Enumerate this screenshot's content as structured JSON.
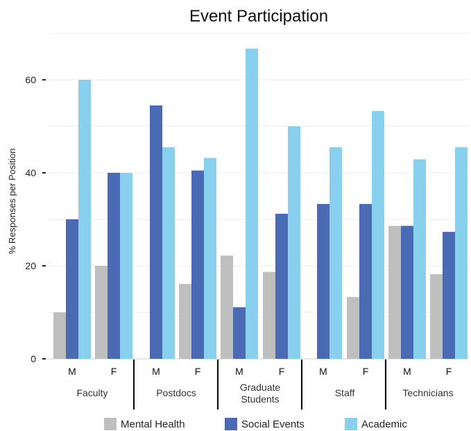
{
  "chart_data": {
    "type": "bar",
    "title": "Event Participation",
    "ylabel": "% Responses per Position",
    "xlabel": "",
    "ylim": [
      0,
      70
    ],
    "yticks": [
      0,
      20,
      40,
      60
    ],
    "grid": true,
    "legend_position": "bottom",
    "groups": [
      "Faculty",
      "Postdocs",
      "Graduate Students",
      "Staff",
      "Technicians"
    ],
    "subgroups": [
      "M",
      "F"
    ],
    "series": [
      {
        "name": "Mental Health",
        "color": "#bfbfbf",
        "values": [
          10,
          20,
          0,
          16.1,
          22.2,
          18.7,
          0,
          13.3,
          28.6,
          18.2
        ]
      },
      {
        "name": "Social Events",
        "color": "#4b6ab4",
        "values": [
          30,
          40,
          54.5,
          40.5,
          11.1,
          31.2,
          33.3,
          33.3,
          28.6,
          27.3
        ]
      },
      {
        "name": "Academic",
        "color": "#89d0ee",
        "values": [
          60,
          40,
          45.5,
          43.2,
          66.7,
          50,
          45.5,
          53.3,
          42.9,
          45.5
        ]
      }
    ]
  }
}
